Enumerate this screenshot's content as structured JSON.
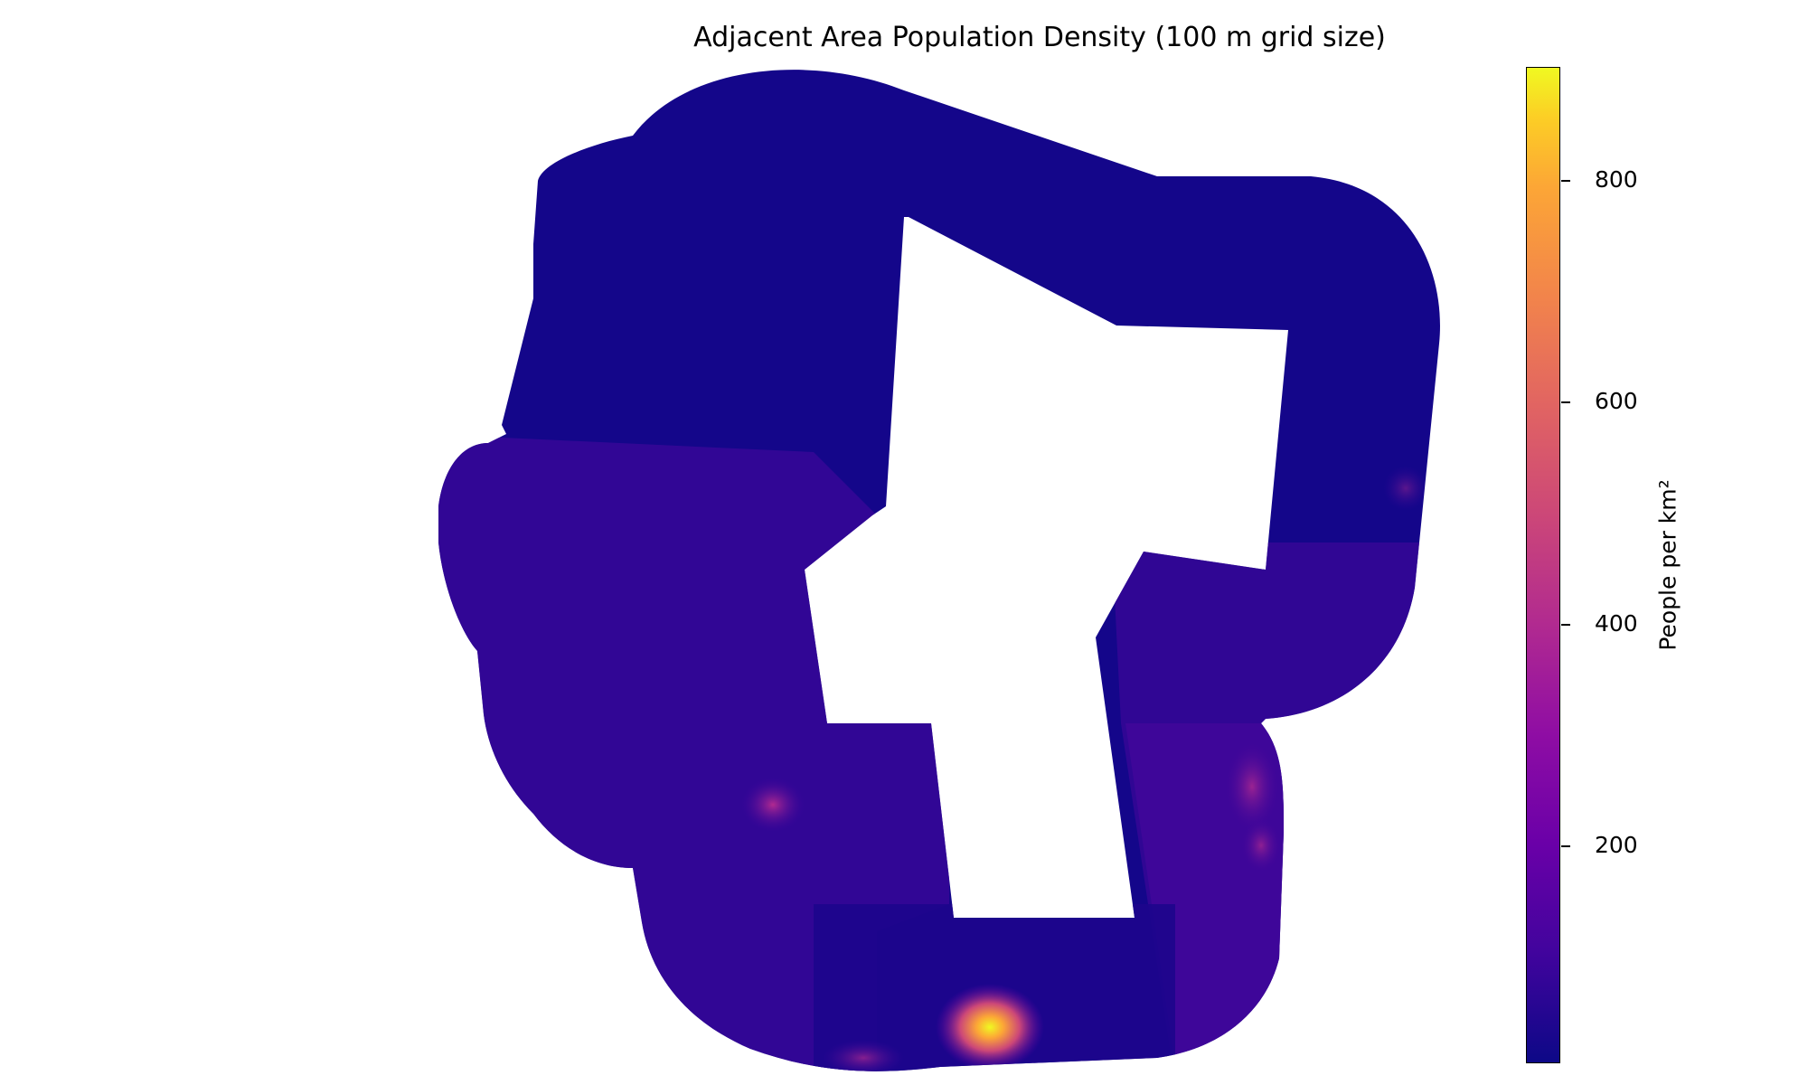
{
  "title": "Adjacent Area Population Density (100 m grid size)",
  "colorbar": {
    "label": "People per km²",
    "colormap": "plasma",
    "min": 0,
    "max": 900,
    "ticks": [
      "200",
      "400",
      "600",
      "800"
    ]
  },
  "colors": {
    "low": "#0d0887",
    "high": "#f0f921"
  }
}
